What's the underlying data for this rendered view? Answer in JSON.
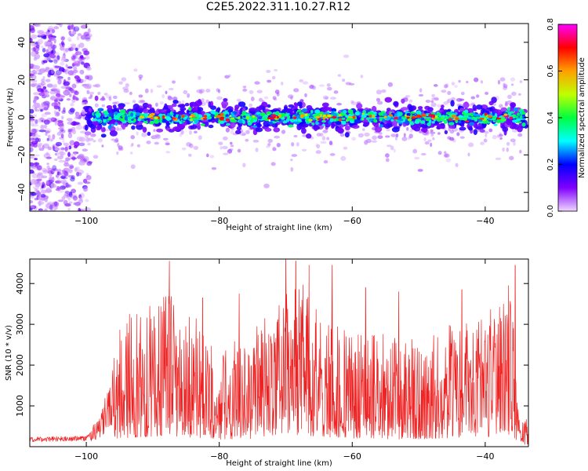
{
  "figure": {
    "title": "C2E5.2022.311.10.27.R12"
  },
  "chart_data": [
    {
      "type": "heatmap",
      "xlabel": "Height of straight line (km)",
      "ylabel": "Frequency (Hz)",
      "xlim": [
        -108.5,
        -33.5
      ],
      "ylim": [
        -50,
        50
      ],
      "xticks": [
        -100,
        -80,
        -60,
        -40
      ],
      "yticks": [
        -40,
        -20,
        0,
        20,
        40
      ],
      "band_center_hz": 0,
      "band_halfwidth_hz": 5,
      "noise_region_x": [
        -108.5,
        -100
      ],
      "colorbar": {
        "label": "Normalized spectral amplitude",
        "range": [
          0.0,
          0.8
        ],
        "ticks": [
          0.0,
          0.2,
          0.4,
          0.6,
          0.8
        ],
        "colormap": [
          "#f0d8ff",
          "#8000ff",
          "#0000ff",
          "#00ffff",
          "#00ff40",
          "#c0ff00",
          "#ffa000",
          "#ff0000",
          "#ff00ff"
        ]
      },
      "grid": false,
      "legend": "none"
    },
    {
      "type": "line",
      "xlabel": "Height of straight line (km)",
      "ylabel": "SNR (10 * v/v)",
      "xlim": [
        -108.5,
        -33.5
      ],
      "ylim": [
        0,
        4600
      ],
      "xticks": [
        -100,
        -80,
        -60,
        -40
      ],
      "yticks": [
        1000,
        2000,
        3000,
        4000
      ],
      "line_color": "#ee2222",
      "envelope": [
        {
          "x": -108.5,
          "level": 180
        },
        {
          "x": -100,
          "level": 200
        },
        {
          "x": -98,
          "level": 500
        },
        {
          "x": -96,
          "level": 1300
        },
        {
          "x": -93,
          "level": 1500
        },
        {
          "x": -88,
          "level": 1800
        },
        {
          "x": -84,
          "level": 1500
        },
        {
          "x": -80,
          "level": 1200
        },
        {
          "x": -76,
          "level": 1200
        },
        {
          "x": -72,
          "level": 1700
        },
        {
          "x": -68,
          "level": 1900
        },
        {
          "x": -64,
          "level": 1600
        },
        {
          "x": -60,
          "level": 1400
        },
        {
          "x": -56,
          "level": 1300
        },
        {
          "x": -52,
          "level": 1200
        },
        {
          "x": -48,
          "level": 1300
        },
        {
          "x": -44,
          "level": 1500
        },
        {
          "x": -40,
          "level": 1600
        },
        {
          "x": -36,
          "level": 1700
        },
        {
          "x": -35,
          "level": 400
        },
        {
          "x": -33.5,
          "level": 300
        }
      ],
      "peaks": [
        {
          "x": -87.5,
          "y": 4550
        },
        {
          "x": -93.5,
          "y": 3250
        },
        {
          "x": -82.5,
          "y": 3650
        },
        {
          "x": -77,
          "y": 3750
        },
        {
          "x": -70,
          "y": 4600
        },
        {
          "x": -68.5,
          "y": 4550
        },
        {
          "x": -66.5,
          "y": 4450
        },
        {
          "x": -63,
          "y": 4450
        },
        {
          "x": -58,
          "y": 3900
        },
        {
          "x": -53,
          "y": 3800
        },
        {
          "x": -43.5,
          "y": 3850
        },
        {
          "x": -36.5,
          "y": 3950
        },
        {
          "x": -35.5,
          "y": 4450
        }
      ],
      "grid": false,
      "legend": "none"
    }
  ]
}
